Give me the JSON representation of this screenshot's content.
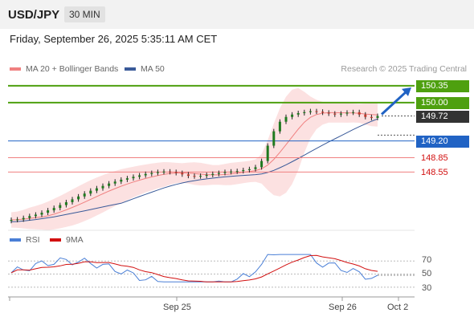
{
  "header": {
    "symbol": "USD/JPY",
    "timeframe": "30 MIN"
  },
  "datetime": "Friday, September 26, 2025 5:35:11 AM CET",
  "legend": {
    "ma20": "MA 20 + Bollinger Bands",
    "ma50": "MA 50"
  },
  "credit": "Research © 2025 Trading Central",
  "rsi_legend": {
    "rsi": "RSI",
    "ma": "9MA"
  },
  "colors": {
    "resistance": "#4ea00f",
    "support": "#f08080",
    "pivot": "#2163c4",
    "ma20": "#f08080",
    "ma50": "#3a5a99",
    "candle": "#1f7a1f",
    "rsi": "#4a7fd6",
    "rsi_ma": "#d21010"
  },
  "levels": [
    {
      "value": 150.35,
      "label": "150.35",
      "kind": "resistance"
    },
    {
      "value": 150.0,
      "label": "150.00",
      "kind": "resistance"
    },
    {
      "value": 149.72,
      "label": "149.72",
      "kind": "last"
    },
    {
      "value": 149.2,
      "label": "149.20",
      "kind": "pivot"
    },
    {
      "value": 148.85,
      "label": "148.85",
      "kind": "support"
    },
    {
      "value": 148.55,
      "label": "148.55",
      "kind": "support"
    }
  ],
  "rsi_ticks": [
    "70",
    "50",
    "30"
  ],
  "x_labels": [
    "Sep 25",
    "Sep 26",
    "Oct 2"
  ],
  "chart_data": {
    "type": "candlestick",
    "price_range": [
      147.45,
      150.55
    ],
    "rsi_range": [
      20,
      85
    ],
    "arrow": {
      "from": 149.72,
      "to": 150.35,
      "direction": "up"
    },
    "close": [
      147.55,
      147.56,
      147.59,
      147.63,
      147.66,
      147.7,
      147.75,
      147.8,
      147.86,
      147.92,
      147.98,
      148.04,
      148.1,
      148.16,
      148.21,
      148.26,
      148.31,
      148.35,
      148.39,
      148.42,
      148.45,
      148.48,
      148.51,
      148.53,
      148.55,
      148.56,
      148.55,
      148.53,
      148.5,
      148.47,
      148.46,
      148.47,
      148.49,
      148.51,
      148.53,
      148.55,
      148.56,
      148.57,
      148.59,
      148.61,
      148.65,
      148.78,
      149.1,
      149.4,
      149.6,
      149.7,
      149.75,
      149.78,
      149.8,
      149.82,
      149.81,
      149.79,
      149.77,
      149.75,
      149.77,
      149.79,
      149.8,
      149.75,
      149.7,
      149.68,
      149.72
    ]
  }
}
